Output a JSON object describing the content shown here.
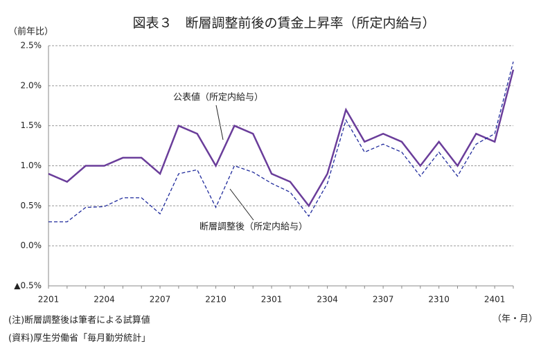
{
  "chart_data": {
    "type": "line",
    "title": "図表３　断層調整前後の賃金上昇率（所定内給与）",
    "y_unit_label": "（前年比）",
    "x_unit_label": "（年・月）",
    "notes": [
      "(注)断層調整後は筆者による試算値",
      "(資料)厚生労働省「毎月勤労統計」"
    ],
    "categories": [
      "2201",
      null,
      null,
      "2204",
      null,
      null,
      "2207",
      null,
      null,
      "2210",
      null,
      null,
      "2301",
      null,
      null,
      "2304",
      null,
      null,
      "2307",
      null,
      null,
      "2310",
      null,
      null,
      "2401",
      null
    ],
    "series": [
      {
        "name": "公表値（所定内給与）",
        "color": "#6a3d9a",
        "dash": false,
        "values": [
          0.9,
          0.8,
          1.0,
          1.0,
          1.1,
          1.1,
          0.9,
          1.5,
          1.4,
          1.0,
          1.5,
          1.4,
          0.9,
          0.8,
          0.5,
          0.9,
          1.7,
          1.3,
          1.4,
          1.3,
          1.0,
          1.3,
          1.0,
          1.4,
          1.3,
          2.2
        ]
      },
      {
        "name": "断層調整後（所定内給与）",
        "color": "#1f2a9c",
        "dash": true,
        "values": [
          0.3,
          0.3,
          0.48,
          0.49,
          0.6,
          0.6,
          0.4,
          0.9,
          0.95,
          0.48,
          1.0,
          0.92,
          0.78,
          0.67,
          0.37,
          0.78,
          1.57,
          1.17,
          1.27,
          1.17,
          0.87,
          1.17,
          0.87,
          1.27,
          1.4,
          2.3
        ]
      }
    ],
    "ylim": [
      -0.5,
      2.5
    ],
    "yticks": [
      {
        "value": -0.5,
        "label": "▲0.5%"
      },
      {
        "value": 0,
        "label": "0.0%"
      },
      {
        "value": 0.5,
        "label": "0.5%"
      },
      {
        "value": 1.0,
        "label": "1.0%"
      },
      {
        "value": 1.5,
        "label": "1.5%"
      },
      {
        "value": 2.0,
        "label": "2.0%"
      },
      {
        "value": 2.5,
        "label": "2.5%"
      }
    ],
    "grid": true
  }
}
